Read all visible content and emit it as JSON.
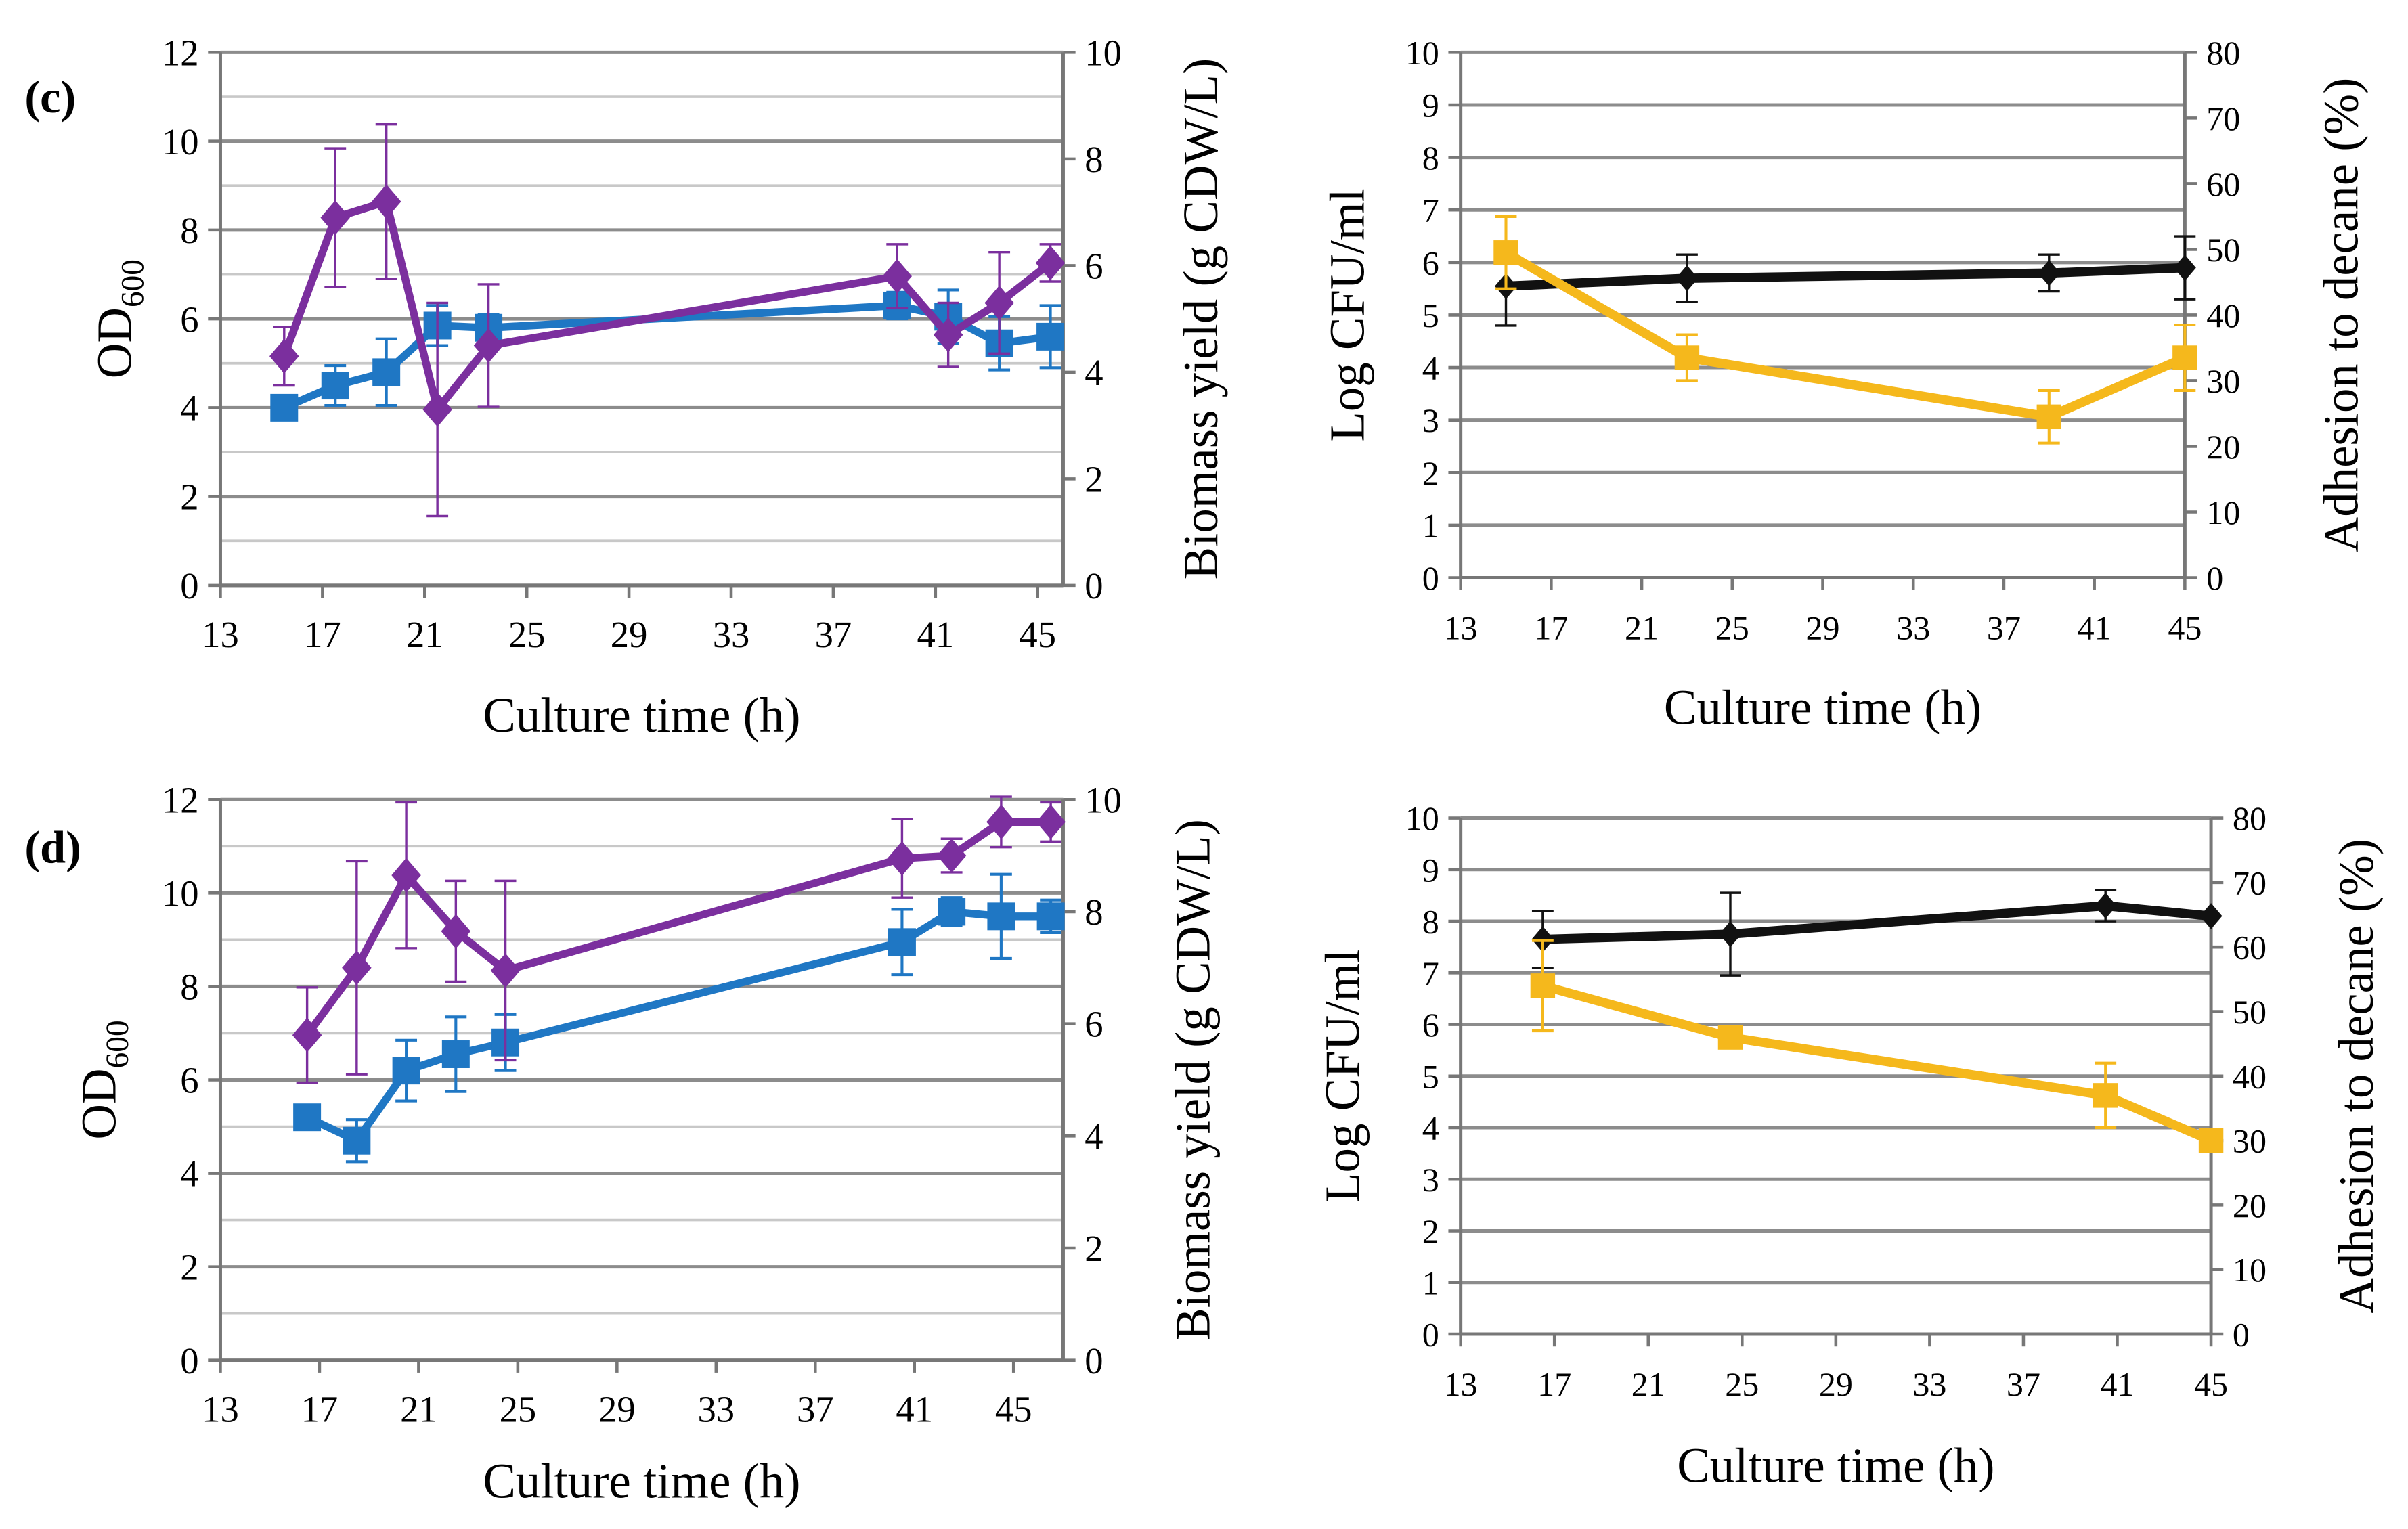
{
  "chart_data": [
    {
      "type": "line",
      "panel_label": "(c)",
      "xlabel": "Culture time (h)",
      "ylabel": "OD600",
      "ylabel_main": "OD",
      "ylabel_sub": "600",
      "y2label": "Biomass yield (g CDW/L)",
      "xlim": [
        13,
        46
      ],
      "ylim": [
        0,
        12
      ],
      "y2lim": [
        0,
        10
      ],
      "x_ticks": [
        "13",
        "17",
        "21",
        "25",
        "29",
        "33",
        "37",
        "41",
        "45"
      ],
      "y_ticks": [
        "0",
        "2",
        "4",
        "6",
        "8",
        "10",
        "12"
      ],
      "y2_ticks": [
        "0",
        "2",
        "4",
        "6",
        "8",
        "10"
      ],
      "series": [
        {
          "name": "OD600",
          "axis": "left",
          "color": "#1f77c4",
          "marker": "square",
          "x": [
            15.5,
            17.5,
            19.5,
            21.5,
            23.5,
            39.5,
            41.5,
            43.5,
            45.5
          ],
          "y": [
            4.0,
            4.5,
            4.8,
            5.85,
            5.8,
            6.3,
            6.05,
            5.45,
            5.6
          ],
          "err": [
            0.15,
            0.45,
            0.75,
            0.45,
            0.3,
            0.3,
            0.6,
            0.6,
            0.7
          ]
        },
        {
          "name": "Biomass yield",
          "axis": "right",
          "color": "#7b2f9e",
          "marker": "diamond",
          "x": [
            15.5,
            17.5,
            19.5,
            21.5,
            23.5,
            39.5,
            41.5,
            43.5,
            45.5
          ],
          "y": [
            4.3,
            6.9,
            7.2,
            3.3,
            4.5,
            5.8,
            4.7,
            5.3,
            6.05
          ],
          "err": [
            0.55,
            1.3,
            1.45,
            2.0,
            1.15,
            0.6,
            0.6,
            0.95,
            0.35
          ]
        }
      ]
    },
    {
      "type": "line",
      "xlabel": "Culture time (h)",
      "ylabel": "Log CFU/ml",
      "y2label": "Adhesion to decane (%)",
      "xlim": [
        13,
        45
      ],
      "ylim": [
        0,
        10
      ],
      "y2lim": [
        0,
        80
      ],
      "x_ticks": [
        "13",
        "17",
        "21",
        "25",
        "29",
        "33",
        "37",
        "41",
        "45"
      ],
      "y_ticks": [
        "0",
        "1",
        "2",
        "3",
        "4",
        "5",
        "6",
        "7",
        "8",
        "9",
        "10"
      ],
      "y2_ticks": [
        "0",
        "10",
        "20",
        "30",
        "40",
        "50",
        "60",
        "70",
        "80"
      ],
      "series": [
        {
          "name": "Log CFU/ml",
          "axis": "left",
          "color": "#111111",
          "marker": "diamond-small",
          "x": [
            15,
            23,
            39,
            45
          ],
          "y": [
            5.55,
            5.7,
            5.8,
            5.9
          ],
          "err": [
            0.75,
            0.45,
            0.35,
            0.6
          ]
        },
        {
          "name": "Adhesion to decane",
          "axis": "right",
          "color": "#f5b81c",
          "marker": "square",
          "x": [
            15,
            23,
            39,
            45
          ],
          "y": [
            49.5,
            33.5,
            24.5,
            33.5
          ],
          "err": [
            5.5,
            3.5,
            4.0,
            5.0
          ]
        }
      ]
    },
    {
      "type": "line",
      "panel_label": "(d)",
      "xlabel": "Culture time (h)",
      "ylabel": "OD600",
      "ylabel_main": "OD",
      "ylabel_sub": "600",
      "y2label": "Biomass yield (g CDW/L)",
      "xlim": [
        13,
        47
      ],
      "ylim": [
        0,
        12
      ],
      "y2lim": [
        0,
        10
      ],
      "x_ticks": [
        "13",
        "17",
        "21",
        "25",
        "29",
        "33",
        "37",
        "41",
        "45"
      ],
      "y_ticks": [
        "0",
        "2",
        "4",
        "6",
        "8",
        "10",
        "12"
      ],
      "y2_ticks": [
        "0",
        "2",
        "4",
        "6",
        "8",
        "10"
      ],
      "series": [
        {
          "name": "OD600",
          "axis": "left",
          "color": "#1f77c4",
          "marker": "square",
          "x": [
            16.5,
            18.5,
            20.5,
            22.5,
            24.5,
            40.5,
            42.5,
            44.5,
            46.5
          ],
          "y": [
            5.2,
            4.7,
            6.2,
            6.55,
            6.8,
            8.95,
            9.6,
            9.5,
            9.5
          ],
          "err": [
            0.2,
            0.45,
            0.65,
            0.8,
            0.6,
            0.7,
            0.3,
            0.9,
            0.35
          ]
        },
        {
          "name": "Biomass yield",
          "axis": "right",
          "color": "#7b2f9e",
          "marker": "diamond",
          "x": [
            16.5,
            18.5,
            20.5,
            22.5,
            24.5,
            40.5,
            42.5,
            44.5,
            46.5
          ],
          "y": [
            5.8,
            7.0,
            8.65,
            7.65,
            6.95,
            8.95,
            9.0,
            9.6,
            9.6
          ],
          "err": [
            0.85,
            1.9,
            1.3,
            0.9,
            1.6,
            0.7,
            0.3,
            0.45,
            0.35
          ]
        }
      ]
    },
    {
      "type": "line",
      "xlabel": "Culture time (h)",
      "ylabel": "Log CFU/ml",
      "y2label": "Adhesion to decane (%)",
      "xlim": [
        13,
        45
      ],
      "ylim": [
        0,
        10
      ],
      "y2lim": [
        0,
        80
      ],
      "x_ticks": [
        "13",
        "17",
        "21",
        "25",
        "29",
        "33",
        "37",
        "41",
        "45"
      ],
      "y_ticks": [
        "0",
        "1",
        "2",
        "3",
        "4",
        "5",
        "6",
        "7",
        "8",
        "9",
        "10"
      ],
      "y2_ticks": [
        "0",
        "10",
        "20",
        "30",
        "40",
        "50",
        "60",
        "70",
        "80"
      ],
      "series": [
        {
          "name": "Log CFU/ml",
          "axis": "left",
          "color": "#111111",
          "marker": "diamond-small",
          "x": [
            16.5,
            24.5,
            40.5,
            45
          ],
          "y": [
            7.65,
            7.75,
            8.3,
            8.1
          ],
          "err": [
            0.55,
            0.8,
            0.3,
            0.0
          ]
        },
        {
          "name": "Adhesion to decane",
          "axis": "right",
          "color": "#f5b81c",
          "marker": "square",
          "x": [
            16.5,
            24.5,
            40.5,
            45
          ],
          "y": [
            54.0,
            46.0,
            37.0,
            30.0
          ],
          "err": [
            7.0,
            1.0,
            5.0,
            0.0
          ]
        }
      ]
    }
  ]
}
